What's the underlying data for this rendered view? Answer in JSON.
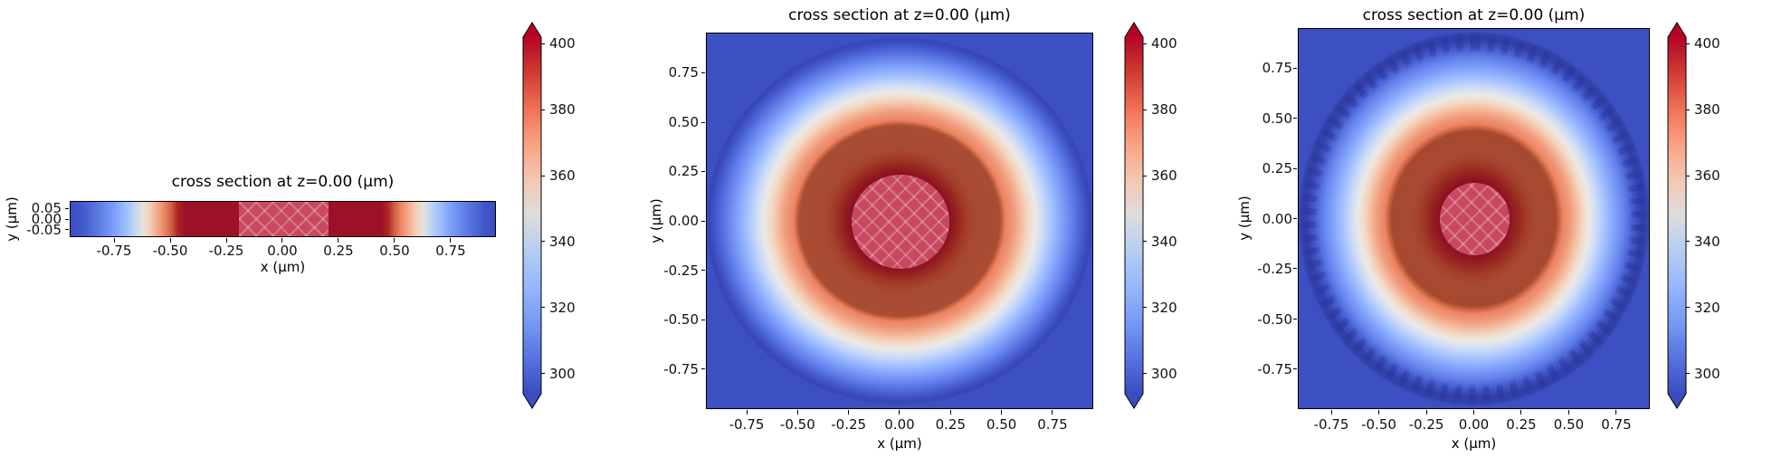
{
  "figure": {
    "background": "#ffffff"
  },
  "colors": {
    "colormap_low": "#3a4cc0",
    "colormap_mid": "#dddddd",
    "colormap_high": "#b40426",
    "background_blue": "#3d50c3",
    "mask_fill": "#c8495f",
    "dark_red_band": "#9c1127",
    "brown_annulus": "#a94c34",
    "axes_edge": "#000000"
  },
  "chart_data": [
    {
      "type": "heatmap",
      "panel": "left-thin-slice",
      "title": "cross section at z=0.00 (µm)",
      "xlabel": "x (µm)",
      "ylabel": "y (µm)",
      "xlim": [
        -0.95,
        0.95
      ],
      "ylim": [
        -0.08,
        0.08
      ],
      "x_tick_labels": [
        "-0.75",
        "-0.50",
        "-0.25",
        "0.00",
        "0.25",
        "0.50",
        "0.75"
      ],
      "y_tick_labels": [
        "0.05",
        "0.00",
        "-0.05"
      ],
      "colormap": "coolwarm",
      "colorbar": {
        "tick_labels": [
          "400",
          "380",
          "360",
          "340",
          "320",
          "300"
        ],
        "vmin": 295,
        "vmax": 405,
        "extend": "both"
      },
      "masked_region": {
        "shape": "band",
        "x_range": [
          -0.2,
          0.2
        ],
        "hatch": "xx"
      },
      "profile_along_x": {
        "x_um": [
          -0.95,
          -0.9,
          -0.8,
          -0.7,
          -0.65,
          -0.6,
          -0.55,
          -0.5,
          -0.4,
          -0.3,
          -0.21,
          0.21,
          0.3,
          0.4,
          0.5,
          0.55,
          0.6,
          0.65,
          0.7,
          0.8,
          0.9,
          0.95
        ],
        "value": [
          295,
          301,
          320,
          338,
          345,
          352,
          361,
          370,
          385,
          395,
          400,
          400,
          395,
          385,
          370,
          361,
          352,
          345,
          338,
          320,
          301,
          295
        ]
      }
    },
    {
      "type": "heatmap",
      "panel": "middle-smooth-disk",
      "title": "cross section at z=0.00 (µm)",
      "xlabel": "x (µm)",
      "ylabel": "y (µm)",
      "xlim": [
        -0.95,
        0.95
      ],
      "ylim": [
        -0.95,
        0.95
      ],
      "x_tick_labels": [
        "-0.75",
        "-0.50",
        "-0.25",
        "0.00",
        "0.25",
        "0.50",
        "0.75"
      ],
      "y_tick_labels": [
        "0.75",
        "0.50",
        "0.25",
        "0.00",
        "-0.25",
        "-0.50",
        "-0.75"
      ],
      "colormap": "coolwarm",
      "colorbar": {
        "tick_labels": [
          "400",
          "380",
          "360",
          "340",
          "320",
          "300"
        ],
        "vmin": 295,
        "vmax": 405,
        "extend": "both"
      },
      "masked_region": {
        "shape": "disk",
        "radius": 0.24,
        "hatch": "xx"
      },
      "radial_profile": {
        "r_um": [
          0.24,
          0.3,
          0.4,
          0.5,
          0.55,
          0.6,
          0.65,
          0.7,
          0.8,
          0.9,
          0.95
        ],
        "value": [
          400,
          394,
          383,
          371,
          362,
          353,
          345,
          337,
          319,
          301,
          295
        ]
      },
      "appearance": "smooth radial field, hottest dark-red ring around hatched core, blue rim"
    },
    {
      "type": "heatmap",
      "panel": "right-stepped-disk",
      "title": "cross section at z=0.00 (µm)",
      "xlabel": "x (µm)",
      "ylabel": "y (µm)",
      "xlim": [
        -0.95,
        0.95
      ],
      "ylim": [
        -0.95,
        0.95
      ],
      "x_tick_labels": [
        "-0.75",
        "-0.50",
        "-0.25",
        "0.00",
        "0.25",
        "0.50",
        "0.75"
      ],
      "y_tick_labels": [
        "0.75",
        "0.50",
        "0.25",
        "0.00",
        "-0.25",
        "-0.50",
        "-0.75"
      ],
      "colormap": "coolwarm",
      "colorbar": {
        "tick_labels": [
          "400",
          "380",
          "360",
          "340",
          "320",
          "300"
        ],
        "vmin": 295,
        "vmax": 405,
        "extend": "both"
      },
      "masked_region": {
        "shape": "disk",
        "radius": 0.18,
        "hatch": "xx"
      },
      "radial_profile": {
        "r_um": [
          0.18,
          0.3,
          0.4,
          0.47,
          0.55,
          0.6,
          0.65,
          0.7,
          0.8,
          0.9,
          0.95
        ],
        "value": [
          400,
          392,
          381,
          372,
          360,
          352,
          344,
          336,
          317,
          300,
          294
        ],
        "note_unitless": "stepped pixelated contour rings from coarser grid"
      }
    }
  ]
}
